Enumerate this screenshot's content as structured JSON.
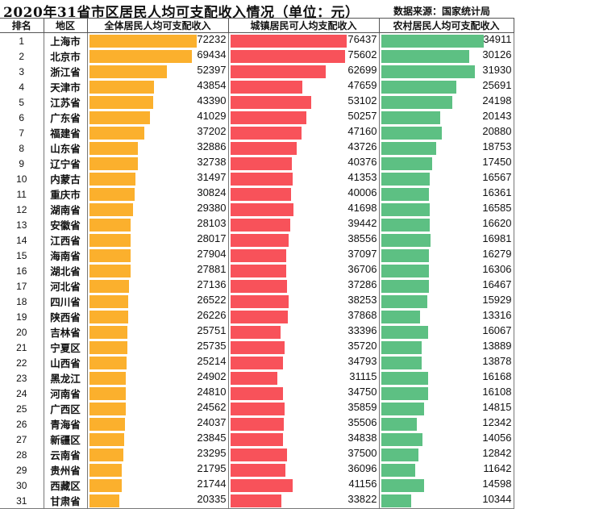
{
  "header": {
    "title": "2020年31省市区居民人均可支配收入情况（单位：元）",
    "source": "数据来源：国家统计局"
  },
  "columns": {
    "rank": "排名",
    "region": "地区",
    "total": "全体居民人均可支配收入",
    "urban": "城镇居民可人均支配收入",
    "rural": "农村居民人均可支配收入"
  },
  "colors": {
    "total": "#FBB02D",
    "urban": "#F8525A",
    "rural": "#5DC083"
  },
  "rows": [
    {
      "rank": "1",
      "region": "上海市",
      "total": "72232",
      "urban": "76437",
      "rural": "34911"
    },
    {
      "rank": "2",
      "region": "北京市",
      "total": "69434",
      "urban": "75602",
      "rural": "30126"
    },
    {
      "rank": "3",
      "region": "浙江省",
      "total": "52397",
      "urban": "62699",
      "rural": "31930"
    },
    {
      "rank": "4",
      "region": "天津市",
      "total": "43854",
      "urban": "47659",
      "rural": "25691"
    },
    {
      "rank": "5",
      "region": "江苏省",
      "total": "43390",
      "urban": "53102",
      "rural": "24198"
    },
    {
      "rank": "6",
      "region": "广东省",
      "total": "41029",
      "urban": "50257",
      "rural": "20143"
    },
    {
      "rank": "7",
      "region": "福建省",
      "total": "37202",
      "urban": "47160",
      "rural": "20880"
    },
    {
      "rank": "8",
      "region": "山东省",
      "total": "32886",
      "urban": "43726",
      "rural": "18753"
    },
    {
      "rank": "9",
      "region": "辽宁省",
      "total": "32738",
      "urban": "40376",
      "rural": "17450"
    },
    {
      "rank": "10",
      "region": "内蒙古",
      "total": "31497",
      "urban": "41353",
      "rural": "16567"
    },
    {
      "rank": "11",
      "region": "重庆市",
      "total": "30824",
      "urban": "40006",
      "rural": "16361"
    },
    {
      "rank": "12",
      "region": "湖南省",
      "total": "29380",
      "urban": "41698",
      "rural": "16585"
    },
    {
      "rank": "13",
      "region": "安徽省",
      "total": "28103",
      "urban": "39442",
      "rural": "16620"
    },
    {
      "rank": "14",
      "region": "江西省",
      "total": "28017",
      "urban": "38556",
      "rural": "16981"
    },
    {
      "rank": "15",
      "region": "海南省",
      "total": "27904",
      "urban": "37097",
      "rural": "16279"
    },
    {
      "rank": "16",
      "region": "湖北省",
      "total": "27881",
      "urban": "36706",
      "rural": "16306"
    },
    {
      "rank": "17",
      "region": "河北省",
      "total": "27136",
      "urban": "37286",
      "rural": "16467"
    },
    {
      "rank": "18",
      "region": "四川省",
      "total": "26522",
      "urban": "38253",
      "rural": "15929"
    },
    {
      "rank": "19",
      "region": "陕西省",
      "total": "26226",
      "urban": "37868",
      "rural": "13316"
    },
    {
      "rank": "20",
      "region": "吉林省",
      "total": "25751",
      "urban": "33396",
      "rural": "16067"
    },
    {
      "rank": "21",
      "region": "宁夏区",
      "total": "25735",
      "urban": "35720",
      "rural": "13889"
    },
    {
      "rank": "22",
      "region": "山西省",
      "total": "25214",
      "urban": "34793",
      "rural": "13878"
    },
    {
      "rank": "23",
      "region": "黑龙江",
      "total": "24902",
      "urban": "31115",
      "rural": "16168"
    },
    {
      "rank": "24",
      "region": "河南省",
      "total": "24810",
      "urban": "34750",
      "rural": "16108"
    },
    {
      "rank": "25",
      "region": "广西区",
      "total": "24562",
      "urban": "35859",
      "rural": "14815"
    },
    {
      "rank": "26",
      "region": "青海省",
      "total": "24037",
      "urban": "35506",
      "rural": "12342"
    },
    {
      "rank": "27",
      "region": "新疆区",
      "total": "23845",
      "urban": "34838",
      "rural": "14056"
    },
    {
      "rank": "28",
      "region": "云南省",
      "total": "23295",
      "urban": "37500",
      "rural": "12842"
    },
    {
      "rank": "29",
      "region": "贵州省",
      "total": "21795",
      "urban": "36096",
      "rural": "11642"
    },
    {
      "rank": "30",
      "region": "西藏区",
      "total": "21744",
      "urban": "41156",
      "rural": "14598"
    },
    {
      "rank": "31",
      "region": "甘肃省",
      "total": "20335",
      "urban": "33822",
      "rural": "10344"
    }
  ],
  "chart_data": {
    "type": "table",
    "title": "2020年31省市区居民人均可支配收入情况（单位：元）",
    "subtitle": "数据来源：国家统计局",
    "categories": [
      "上海市",
      "北京市",
      "浙江省",
      "天津市",
      "江苏省",
      "广东省",
      "福建省",
      "山东省",
      "辽宁省",
      "内蒙古",
      "重庆市",
      "湖南省",
      "安徽省",
      "江西省",
      "海南省",
      "湖北省",
      "河北省",
      "四川省",
      "陕西省",
      "吉林省",
      "宁夏区",
      "山西省",
      "黑龙江",
      "河南省",
      "广西区",
      "青海省",
      "新疆区",
      "云南省",
      "贵州省",
      "西藏区",
      "甘肃省"
    ],
    "series": [
      {
        "name": "全体居民人均可支配收入",
        "color": "#FBB02D",
        "values": [
          72232,
          69434,
          52397,
          43854,
          43390,
          41029,
          37202,
          32886,
          32738,
          31497,
          30824,
          29380,
          28103,
          28017,
          27904,
          27881,
          27136,
          26522,
          26226,
          25751,
          25735,
          25214,
          24902,
          24810,
          24562,
          24037,
          23845,
          23295,
          21795,
          21744,
          20335
        ]
      },
      {
        "name": "城镇居民可人均支配收入",
        "color": "#F8525A",
        "values": [
          76437,
          75602,
          62699,
          47659,
          53102,
          50257,
          47160,
          43726,
          40376,
          41353,
          40006,
          41698,
          39442,
          38556,
          37097,
          36706,
          37286,
          38253,
          37868,
          33396,
          35720,
          34793,
          31115,
          34750,
          35859,
          35506,
          34838,
          37500,
          36096,
          41156,
          33822
        ]
      },
      {
        "name": "农村居民人均可支配收入",
        "color": "#5DC083",
        "values": [
          34911,
          30126,
          31930,
          25691,
          24198,
          20143,
          20880,
          18753,
          17450,
          16567,
          16361,
          16585,
          16620,
          16981,
          16279,
          16306,
          16467,
          15929,
          13316,
          16067,
          13889,
          13878,
          16168,
          16108,
          14815,
          12342,
          14056,
          12842,
          11642,
          14598,
          10344
        ]
      }
    ],
    "xlabel": "",
    "ylabel": "元",
    "legend": "column headers",
    "grid": false
  }
}
